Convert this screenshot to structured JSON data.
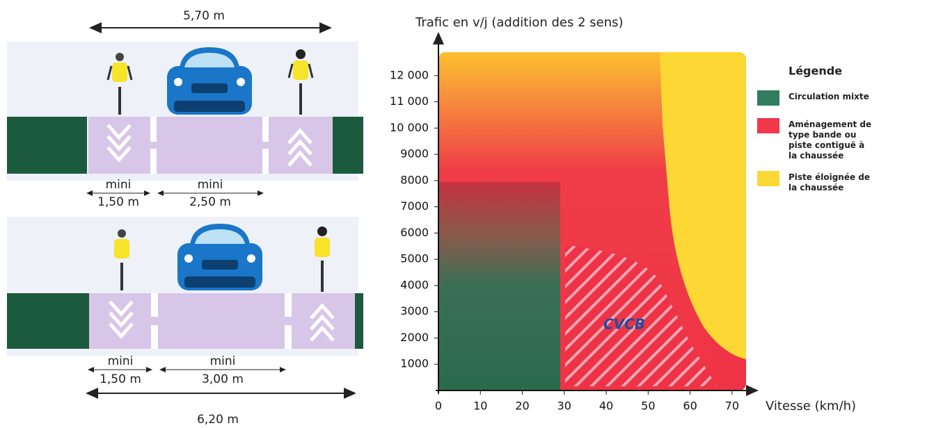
{
  "diagram": {
    "top_width": "5,70 m",
    "profiles": [
      {
        "bike_lane_min": "mini",
        "bike_lane_width": "1,50 m",
        "car_lane_min": "mini",
        "car_lane_width": "2,50 m"
      },
      {
        "bike_lane_min": "mini",
        "bike_lane_width": "1,50 m",
        "car_lane_min": "mini",
        "car_lane_width": "3,00 m"
      }
    ],
    "bottom_width": "6,20 m"
  },
  "chart_data": {
    "type": "region",
    "title": "Trafic en v/j  (addition des 2 sens)",
    "x_label": "Vitesse (km/h)",
    "xlim": [
      0,
      75
    ],
    "xticks": [
      0,
      10,
      20,
      30,
      40,
      50,
      60,
      70
    ],
    "ylim": [
      0,
      13000
    ],
    "yticks": [
      1000,
      2000,
      3000,
      4000,
      5000,
      6000,
      7000,
      8000,
      9000,
      {
        "value": 10000,
        "label": "10 000"
      },
      {
        "value": 11000,
        "label": "11 000"
      },
      {
        "value": 12000,
        "label": "12 000"
      }
    ],
    "legend_title": "Légende",
    "series": [
      {
        "name": "Circulation mixte",
        "color": "#2f7d5e"
      },
      {
        "name": "Aménagement de type bande ou piste contiguë à la chaussée",
        "color": "#f0384a"
      },
      {
        "name": "Piste éloignée de la chaussée",
        "color": "#fdd835"
      }
    ],
    "annotation": "CVCB"
  }
}
